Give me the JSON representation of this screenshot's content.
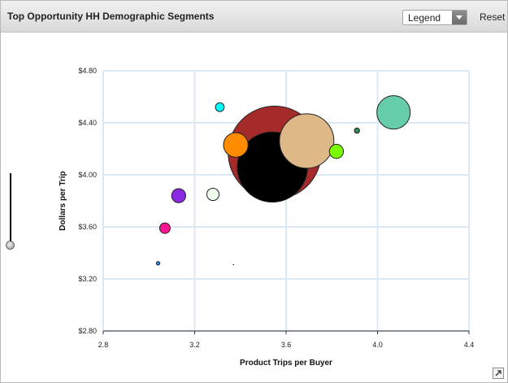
{
  "header": {
    "title": "Top Opportunity HH Demographic Segments",
    "legend_select_value": "Legend",
    "reset_label": "Reset"
  },
  "chart_data": {
    "type": "scatter",
    "xlabel": "Product Trips per Buyer",
    "ylabel": "Dollars per Trip",
    "xlim": [
      2.8,
      4.4
    ],
    "ylim": [
      2.8,
      4.8
    ],
    "x_ticks": [
      "2.8",
      "3.2",
      "3.6",
      "4.0",
      "4.4"
    ],
    "y_ticks": [
      "$2.80",
      "$3.20",
      "$3.60",
      "$4.00",
      "$4.40",
      "$4.80"
    ],
    "grid": true,
    "points": [
      {
        "x": 3.55,
        "y": 4.17,
        "size": 53,
        "color": "#a52a2a"
      },
      {
        "x": 3.69,
        "y": 4.26,
        "size": 31,
        "color": "#deb887"
      },
      {
        "x": 3.54,
        "y": 4.06,
        "size": 40,
        "color": "#000000"
      },
      {
        "x": 4.07,
        "y": 4.48,
        "size": 19,
        "color": "#66cdaa"
      },
      {
        "x": 3.38,
        "y": 4.23,
        "size": 14,
        "color": "#ff8c00"
      },
      {
        "x": 3.82,
        "y": 4.18,
        "size": 8,
        "color": "#7cfc00"
      },
      {
        "x": 3.31,
        "y": 4.52,
        "size": 5,
        "color": "#00ffff"
      },
      {
        "x": 3.91,
        "y": 4.34,
        "size": 3,
        "color": "#2e8b57"
      },
      {
        "x": 3.13,
        "y": 3.84,
        "size": 8,
        "color": "#8a2be2"
      },
      {
        "x": 3.28,
        "y": 3.85,
        "size": 7,
        "color": "#f0fff0"
      },
      {
        "x": 3.07,
        "y": 3.59,
        "size": 6,
        "color": "#ff1493"
      },
      {
        "x": 3.04,
        "y": 3.32,
        "size": 2,
        "color": "#1e90ff"
      },
      {
        "x": 3.37,
        "y": 3.31,
        "size": 0.5,
        "color": "#000000"
      }
    ]
  }
}
